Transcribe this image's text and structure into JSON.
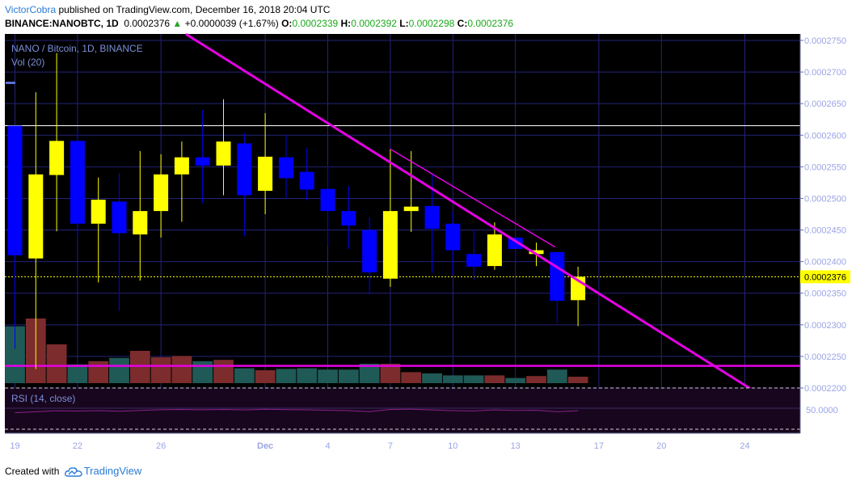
{
  "header": {
    "author": "VictorCobra",
    "published": " published on TradingView.com, December 16, 2018 20:04 UTC",
    "symbol": "BINANCE:NANOBTC, 1D",
    "price": "0.0002376",
    "change_arrow": "▲",
    "change": "+0.0000039 (+1.67%)",
    "o_label": "O:",
    "o_value": "0.0002339",
    "h_label": "H:",
    "h_value": "0.0002392",
    "l_label": "L:",
    "l_value": "0.0002298",
    "c_label": "C:",
    "c_value": "0.0002376"
  },
  "legend": {
    "title": "NANO / Bitcoin, 1D, BINANCE",
    "volume": "Vol (20)"
  },
  "rsi": {
    "label": "RSI (14, close)",
    "level": "50.0000"
  },
  "footer": {
    "created_with": "Created with",
    "brand": "TradingView"
  },
  "colors": {
    "bull": "#ffff00",
    "bear": "#0000ff",
    "bull_vol": "#7c2c2c",
    "bear_vol": "#1f5a57",
    "trendline": "#e500e5",
    "rsi": "#8a228a"
  },
  "chart_data": {
    "type": "candlestick",
    "title": "NANO / Bitcoin, 1D, BINANCE",
    "interval": "1D",
    "ylim": [
      0.00022,
      0.000275
    ],
    "price_ticks": [
      "0.0002200",
      "0.0002250",
      "0.0002300",
      "0.0002350",
      "0.0002400",
      "0.0002450",
      "0.0002500",
      "0.0002550",
      "0.0002600",
      "0.0002650",
      "0.0002700",
      "0.0002750"
    ],
    "last_price_label": "0.0002376",
    "x_ticks": [
      {
        "label": "19",
        "idx": 0
      },
      {
        "label": "22",
        "idx": 3
      },
      {
        "label": "26",
        "idx": 7
      },
      {
        "label": "Dec",
        "idx": 12
      },
      {
        "label": "4",
        "idx": 15
      },
      {
        "label": "7",
        "idx": 18
      },
      {
        "label": "10",
        "idx": 21
      },
      {
        "label": "13",
        "idx": 24
      },
      {
        "label": "17",
        "idx": 28
      },
      {
        "label": "20",
        "idx": 31
      },
      {
        "label": "24",
        "idx": 35
      }
    ],
    "candles": [
      {
        "date": "2018-11-19",
        "o": 0.0002615,
        "h": 0.0002615,
        "l": 0.0002262,
        "c": 0.000241
      },
      {
        "date": "2018-11-20",
        "o": 0.0002405,
        "h": 0.0002668,
        "l": 0.000223,
        "c": 0.0002538
      },
      {
        "date": "2018-11-21",
        "o": 0.0002537,
        "h": 0.000273,
        "l": 0.0002448,
        "c": 0.0002591
      },
      {
        "date": "2018-11-22",
        "o": 0.0002591,
        "h": 0.0002607,
        "l": 0.000244,
        "c": 0.000246
      },
      {
        "date": "2018-11-23",
        "o": 0.000246,
        "h": 0.0002533,
        "l": 0.0002367,
        "c": 0.0002498
      },
      {
        "date": "2018-11-24",
        "o": 0.0002495,
        "h": 0.000254,
        "l": 0.0002322,
        "c": 0.0002445
      },
      {
        "date": "2018-11-25",
        "o": 0.0002443,
        "h": 0.0002575,
        "l": 0.000237,
        "c": 0.000248
      },
      {
        "date": "2018-11-26",
        "o": 0.000248,
        "h": 0.000257,
        "l": 0.0002438,
        "c": 0.0002538
      },
      {
        "date": "2018-11-27",
        "o": 0.0002538,
        "h": 0.000259,
        "l": 0.0002463,
        "c": 0.0002565
      },
      {
        "date": "2018-11-28",
        "o": 0.0002565,
        "h": 0.000264,
        "l": 0.0002493,
        "c": 0.0002552
      },
      {
        "date": "2018-11-29",
        "o": 0.0002552,
        "h": 0.0002657,
        "l": 0.0002505,
        "c": 0.000259
      },
      {
        "date": "2018-11-30",
        "o": 0.0002587,
        "h": 0.0002603,
        "l": 0.000244,
        "c": 0.0002505
      },
      {
        "date": "2018-12-01",
        "o": 0.0002512,
        "h": 0.0002635,
        "l": 0.0002475,
        "c": 0.0002566
      },
      {
        "date": "2018-12-02",
        "o": 0.0002565,
        "h": 0.00026,
        "l": 0.00025,
        "c": 0.0002532
      },
      {
        "date": "2018-12-03",
        "o": 0.0002542,
        "h": 0.000258,
        "l": 0.0002497,
        "c": 0.0002514
      },
      {
        "date": "2018-12-04",
        "o": 0.0002515,
        "h": 0.0002552,
        "l": 0.0002425,
        "c": 0.000248
      },
      {
        "date": "2018-12-05",
        "o": 0.000248,
        "h": 0.000252,
        "l": 0.000242,
        "c": 0.0002457
      },
      {
        "date": "2018-12-06",
        "o": 0.000245,
        "h": 0.000247,
        "l": 0.0002348,
        "c": 0.0002383
      },
      {
        "date": "2018-12-07",
        "o": 0.0002373,
        "h": 0.0002578,
        "l": 0.000236,
        "c": 0.000248
      },
      {
        "date": "2018-12-08",
        "o": 0.000248,
        "h": 0.0002575,
        "l": 0.0002447,
        "c": 0.0002487
      },
      {
        "date": "2018-12-09",
        "o": 0.0002488,
        "h": 0.000254,
        "l": 0.0002382,
        "c": 0.0002452
      },
      {
        "date": "2018-12-10",
        "o": 0.000246,
        "h": 0.0002478,
        "l": 0.000238,
        "c": 0.0002418
      },
      {
        "date": "2018-12-11",
        "o": 0.0002412,
        "h": 0.000245,
        "l": 0.0002372,
        "c": 0.0002392
      },
      {
        "date": "2018-12-12",
        "o": 0.0002393,
        "h": 0.0002462,
        "l": 0.0002387,
        "c": 0.0002443
      },
      {
        "date": "2018-12-13",
        "o": 0.0002438,
        "h": 0.000244,
        "l": 0.00024,
        "c": 0.000242
      },
      {
        "date": "2018-12-14",
        "o": 0.0002412,
        "h": 0.000243,
        "l": 0.0002393,
        "c": 0.0002418
      },
      {
        "date": "2018-12-15",
        "o": 0.0002415,
        "h": 0.0002415,
        "l": 0.0002303,
        "c": 0.0002338
      },
      {
        "date": "2018-12-16",
        "o": 0.0002339,
        "h": 0.0002392,
        "l": 0.0002298,
        "c": 0.0002376
      }
    ],
    "volume": {
      "ylim": [
        0,
        1
      ],
      "values": [
        0.88,
        1.0,
        0.6,
        0.29,
        0.34,
        0.39,
        0.5,
        0.4,
        0.42,
        0.34,
        0.36,
        0.23,
        0.2,
        0.22,
        0.23,
        0.21,
        0.21,
        0.3,
        0.3,
        0.17,
        0.15,
        0.12,
        0.12,
        0.12,
        0.08,
        0.11,
        0.21,
        0.1
      ]
    },
    "rsi": {
      "level": 50,
      "values": [
        45.5,
        46.5,
        47.5,
        47.2,
        47.6,
        47.0,
        47.8,
        48.5,
        48.8,
        48.4,
        48.8,
        48.3,
        49.0,
        48.6,
        48.4,
        48.0,
        47.6,
        46.6,
        48.8,
        49.0,
        48.3,
        47.6,
        47.3,
        48.4,
        47.8,
        48.0,
        46.5,
        47.5
      ]
    },
    "trendlines": [
      {
        "name": "main-descending",
        "from": {
          "idx": 8.2,
          "price": 0.000276
        },
        "to": {
          "idx": 35.6,
          "price": 0.0002192
        }
      },
      {
        "name": "short-descending",
        "from": {
          "idx": 18.0,
          "price": 0.0002578
        },
        "to": {
          "idx": 25.9,
          "price": 0.0002423
        }
      }
    ],
    "horizontal_lines": [
      {
        "name": "resistance",
        "price": 0.0002615,
        "style": "solid",
        "color": "#ffffff"
      },
      {
        "name": "support",
        "price": 0.0002235,
        "style": "solid",
        "color": "#e500e5"
      }
    ]
  }
}
